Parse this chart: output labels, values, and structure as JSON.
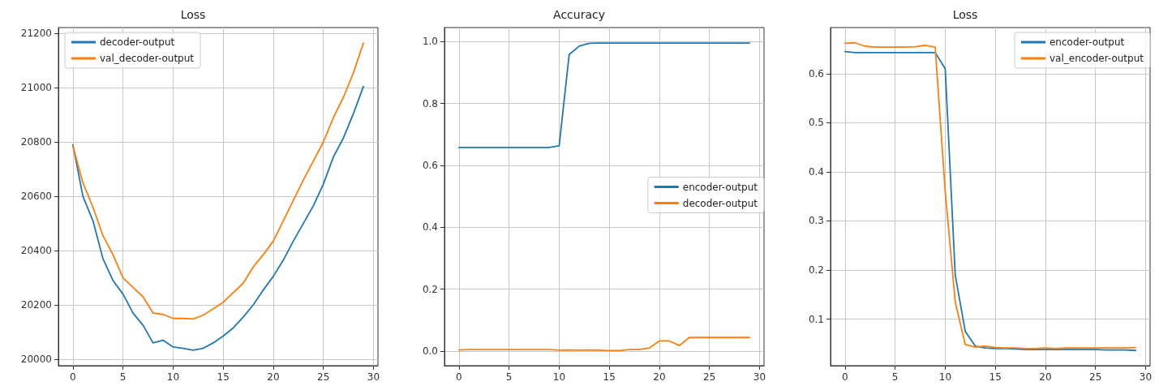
{
  "chart_data": [
    {
      "type": "line",
      "title": "Loss",
      "x": [
        0,
        1,
        2,
        3,
        4,
        5,
        6,
        7,
        8,
        9,
        10,
        11,
        12,
        13,
        14,
        15,
        16,
        17,
        18,
        19,
        20,
        21,
        22,
        23,
        24,
        25,
        26,
        27,
        28,
        29
      ],
      "series": [
        {
          "name": "decoder-output",
          "color": "#1f77b4",
          "values": [
            20790,
            20600,
            20510,
            20370,
            20290,
            20240,
            20170,
            20125,
            20060,
            20070,
            20045,
            20040,
            20033,
            20040,
            20060,
            20085,
            20115,
            20155,
            20200,
            20255,
            20305,
            20365,
            20435,
            20500,
            20565,
            20645,
            20745,
            20815,
            20905,
            21005
          ]
        },
        {
          "name": "val_decoder-output",
          "color": "#ff7f0e",
          "values": [
            20785,
            20650,
            20560,
            20455,
            20385,
            20300,
            20265,
            20230,
            20170,
            20165,
            20150,
            20150,
            20148,
            20162,
            20185,
            20210,
            20245,
            20280,
            20340,
            20385,
            20435,
            20510,
            20585,
            20660,
            20730,
            20800,
            20890,
            20965,
            21055,
            21165
          ]
        }
      ],
      "xlim": [
        -1.45,
        30.45
      ],
      "xticks": [
        0,
        5,
        10,
        15,
        20,
        25,
        30
      ],
      "ylim": [
        19976,
        21222
      ],
      "yticks": [
        20000,
        20200,
        20400,
        20600,
        20800,
        21000,
        21200
      ],
      "grid": true,
      "legend": "top left",
      "marker": "none",
      "line_style": "solid"
    },
    {
      "type": "line",
      "title": "Accuracy",
      "x": [
        0,
        1,
        2,
        3,
        4,
        5,
        6,
        7,
        8,
        9,
        10,
        11,
        12,
        13,
        14,
        15,
        16,
        17,
        18,
        19,
        20,
        21,
        22,
        23,
        24,
        25,
        26,
        27,
        28,
        29
      ],
      "series": [
        {
          "name": "encoder-output",
          "color": "#1f77b4",
          "values": [
            0.658,
            0.658,
            0.658,
            0.658,
            0.658,
            0.658,
            0.658,
            0.658,
            0.658,
            0.658,
            0.663,
            0.958,
            0.985,
            0.994,
            0.995,
            0.995,
            0.995,
            0.995,
            0.995,
            0.995,
            0.995,
            0.995,
            0.995,
            0.995,
            0.995,
            0.995,
            0.995,
            0.995,
            0.995,
            0.995
          ]
        },
        {
          "name": "decoder-output",
          "color": "#ff7f0e",
          "values": [
            0.004,
            0.005,
            0.005,
            0.005,
            0.005,
            0.005,
            0.005,
            0.005,
            0.005,
            0.005,
            0.003,
            0.004,
            0.003,
            0.004,
            0.003,
            0.002,
            0.002,
            0.005,
            0.005,
            0.01,
            0.033,
            0.033,
            0.018,
            0.044,
            0.044,
            0.044,
            0.044,
            0.044,
            0.044,
            0.044
          ]
        }
      ],
      "xlim": [
        -1.45,
        30.45
      ],
      "xticks": [
        0,
        5,
        10,
        15,
        20,
        25,
        30
      ],
      "ylim": [
        -0.047,
        1.045
      ],
      "yticks": [
        {
          "value": 0,
          "label": "0.0"
        },
        {
          "value": 0.2,
          "label": "0.2"
        },
        {
          "value": 0.4,
          "label": "0.4"
        },
        {
          "value": 0.6,
          "label": "0.6"
        },
        {
          "value": 0.8,
          "label": "0.8"
        },
        {
          "value": 1,
          "label": "1.0"
        }
      ],
      "grid": true,
      "legend": "right",
      "marker": "none",
      "line_style": "solid"
    },
    {
      "type": "line",
      "title": "Loss",
      "x": [
        0,
        1,
        2,
        3,
        4,
        5,
        6,
        7,
        8,
        9,
        10,
        11,
        12,
        13,
        14,
        15,
        16,
        17,
        18,
        19,
        20,
        21,
        22,
        23,
        24,
        25,
        26,
        27,
        28,
        29
      ],
      "series": [
        {
          "name": "encoder-output",
          "color": "#1f77b4",
          "values": [
            0.645,
            0.643,
            0.643,
            0.643,
            0.643,
            0.643,
            0.643,
            0.643,
            0.643,
            0.643,
            0.61,
            0.19,
            0.075,
            0.045,
            0.041,
            0.04,
            0.04,
            0.039,
            0.038,
            0.038,
            0.038,
            0.038,
            0.038,
            0.038,
            0.038,
            0.038,
            0.037,
            0.037,
            0.037,
            0.036
          ]
        },
        {
          "name": "val_encoder-output",
          "color": "#ff7f0e",
          "values": [
            0.662,
            0.663,
            0.656,
            0.654,
            0.654,
            0.654,
            0.654,
            0.655,
            0.658,
            0.654,
            0.36,
            0.135,
            0.048,
            0.043,
            0.045,
            0.042,
            0.041,
            0.041,
            0.04,
            0.04,
            0.041,
            0.04,
            0.041,
            0.041,
            0.041,
            0.041,
            0.041,
            0.041,
            0.041,
            0.042
          ]
        }
      ],
      "xlim": [
        -1.45,
        30.45
      ],
      "xticks": [
        0,
        5,
        10,
        15,
        20,
        25,
        30
      ],
      "ylim": [
        0.005,
        0.694
      ],
      "yticks": [
        0.1,
        0.2,
        0.3,
        0.4,
        0.5,
        0.6
      ],
      "grid": true,
      "legend": "top right",
      "marker": "none",
      "line_style": "solid"
    }
  ]
}
